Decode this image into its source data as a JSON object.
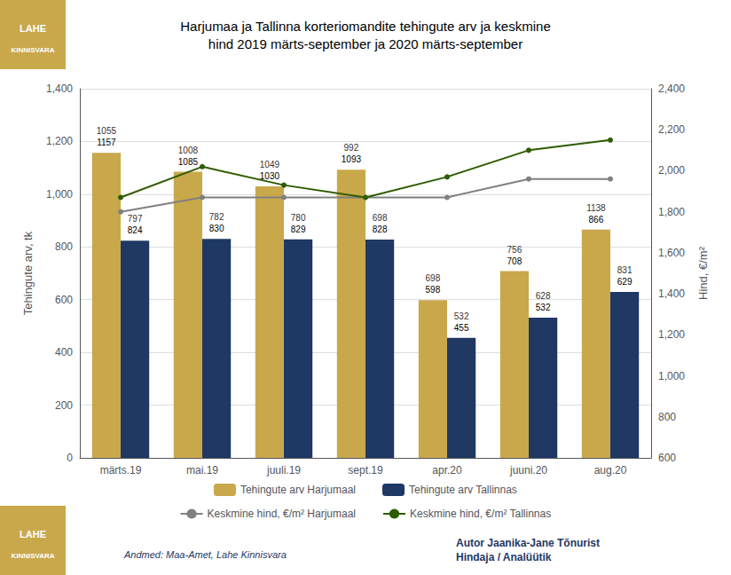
{
  "chart_data": {
    "type": "bar",
    "title": "Harjumaa ja Tallinna korteriomandite tehingute arv ja keskmine\nhind 2019 märts-september ja 2020 märts-september",
    "categories": [
      "märts.19",
      "mai.19",
      "juuli.19",
      "sept.19",
      "apr.20",
      "juuni.20",
      "aug.20"
    ],
    "series": [
      {
        "name": "Tehingute arv Harjumaal",
        "type": "bar",
        "color": "#C9A84C",
        "values": [
          1157,
          1085,
          1030,
          1093,
          598,
          708,
          866
        ],
        "data_labels": true,
        "price_labels": [
          1055,
          1008,
          1049,
          992,
          698,
          756,
          1138
        ]
      },
      {
        "name": "Tehingute arv Tallinnas",
        "type": "bar",
        "color": "#1F3864",
        "values": [
          824,
          830,
          829,
          828,
          455,
          532,
          629
        ],
        "data_labels": true,
        "price_labels": [
          797,
          782,
          780,
          698,
          532,
          628,
          831
        ]
      },
      {
        "name": "Keskmine hind, €/m² Harjumaal",
        "type": "line",
        "axis": "y2",
        "color": "#808080",
        "marker": "circle",
        "values": [
          1800,
          1870,
          1870,
          1870,
          1870,
          1960,
          1960
        ]
      },
      {
        "name": "Keskmine hind, €/m² Tallinnas",
        "type": "line",
        "axis": "y2",
        "color": "#2E5C00",
        "marker": "circle",
        "values": [
          1870,
          2020,
          1930,
          1870,
          1970,
          2100,
          2150
        ]
      }
    ],
    "ylabel": "Tehingute arv, tk",
    "y2label": "Hind, €/m²",
    "ylim": [
      0,
      1400
    ],
    "yticks": [
      0,
      200,
      400,
      600,
      800,
      1000,
      1200,
      1400
    ],
    "y2lim": [
      600,
      2400
    ],
    "y2ticks": [
      600,
      800,
      1000,
      1200,
      1400,
      1600,
      1800,
      2000,
      2200,
      2400
    ],
    "grid": true,
    "legend": "bottom",
    "annotations": [
      "Andmed: Maa-Amet, Lahe Kinnisvara",
      "Autor Jaanika-Jane Tõnurist\nHindaja / Analüütik"
    ],
    "logo": {
      "texts": [
        "LAHE",
        "KINNISVARA"
      ],
      "color": "#C9A84C"
    }
  }
}
